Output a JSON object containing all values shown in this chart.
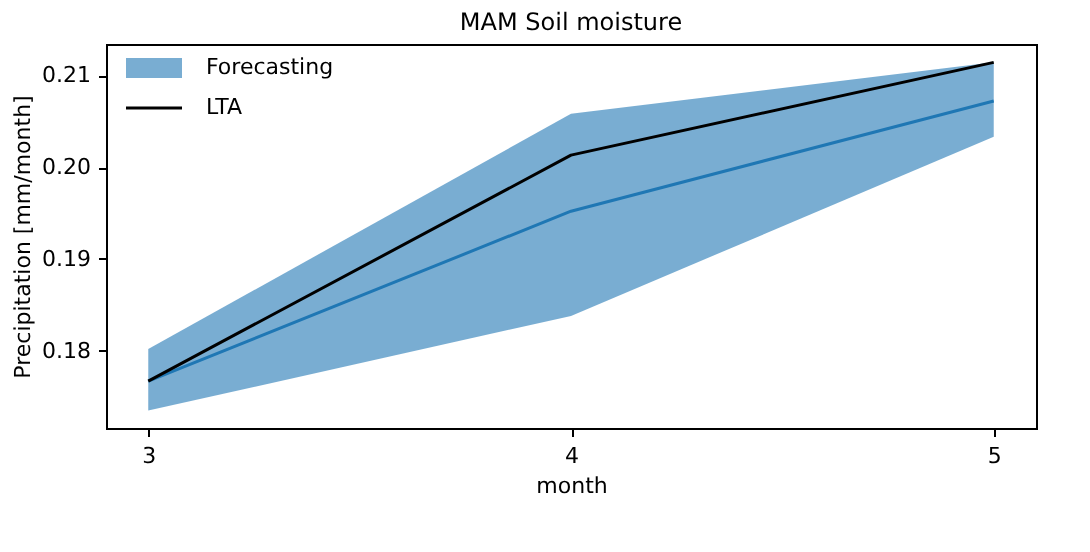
{
  "chart_data": {
    "type": "line",
    "title": "MAM Soil moisture",
    "xlabel": "month",
    "ylabel": "Precipitation [mm/month]",
    "x": [
      3,
      4,
      5
    ],
    "series": [
      {
        "name": "Forecasting",
        "color": "#1f77b4",
        "values": [
          0.1767,
          0.1952,
          0.2072
        ],
        "lower": [
          0.1735,
          0.1838,
          0.2033
        ],
        "upper": [
          0.1802,
          0.2058,
          0.2114
        ]
      },
      {
        "name": "LTA",
        "color": "#000000",
        "values": [
          0.1767,
          0.2013,
          0.2114
        ]
      }
    ],
    "xlim": [
      2.9,
      5.1
    ],
    "ylim": [
      0.1716,
      0.2134
    ],
    "xticks": [
      3,
      4,
      5
    ],
    "yticks": [
      0.18,
      0.19,
      {
        "value": 0.2,
        "label": "0.20"
      },
      0.21
    ],
    "grid": false,
    "legend": "top left",
    "marker": "none",
    "line_style": "solid"
  }
}
